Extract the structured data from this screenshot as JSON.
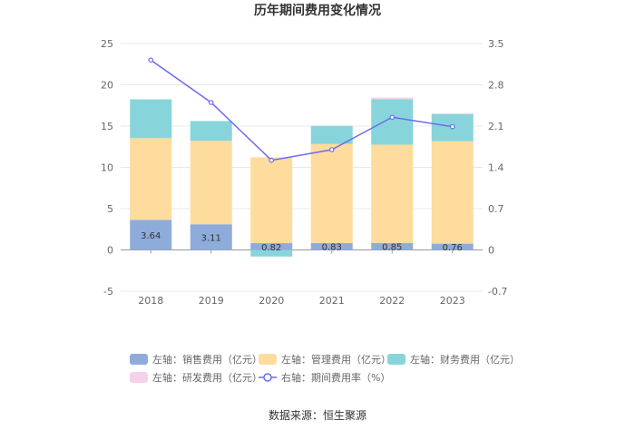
{
  "chart_data": {
    "type": "bar",
    "title": "历年期间费用变化情况",
    "categories": [
      "2018",
      "2019",
      "2020",
      "2021",
      "2022",
      "2023"
    ],
    "left_axis": {
      "min": -5,
      "max": 25,
      "ticks": [
        "-5",
        "0",
        "5",
        "10",
        "15",
        "20",
        "25"
      ]
    },
    "right_axis": {
      "min": -0.7,
      "max": 3.5,
      "ticks": [
        "-0.7",
        "0",
        "0.7",
        "1.4",
        "2.1",
        "2.8",
        "3.5"
      ]
    },
    "series": [
      {
        "name": "左轴：销售费用（亿元）",
        "axis": "left",
        "stack": true,
        "color": "#8eacdb",
        "values": [
          3.64,
          3.11,
          0.82,
          0.83,
          0.85,
          0.76
        ],
        "labels": [
          "3.64",
          "3.11",
          "0.82",
          "0.83",
          "0.85",
          "0.76"
        ]
      },
      {
        "name": "左轴：管理费用（亿元）",
        "axis": "left",
        "stack": true,
        "color": "#fedc9e",
        "values": [
          9.9,
          10.1,
          10.4,
          12.0,
          11.9,
          12.4
        ]
      },
      {
        "name": "左轴：财务费用（亿元）",
        "axis": "left",
        "stack": true,
        "color": "#87d5da",
        "values": [
          4.7,
          2.4,
          -0.8,
          2.2,
          5.5,
          3.3
        ]
      },
      {
        "name": "左轴：研发费用（亿元）",
        "axis": "left",
        "stack": true,
        "color": "#f3d2ea",
        "values": [
          0,
          0,
          0,
          0,
          0.2,
          0.1
        ]
      },
      {
        "name": "右轴：期间费用率（%）",
        "axis": "right",
        "type": "line",
        "color": "#6b6bf0",
        "values": [
          3.22,
          2.5,
          1.52,
          1.7,
          2.25,
          2.09
        ]
      }
    ],
    "source": "数据来源：恒生聚源"
  }
}
